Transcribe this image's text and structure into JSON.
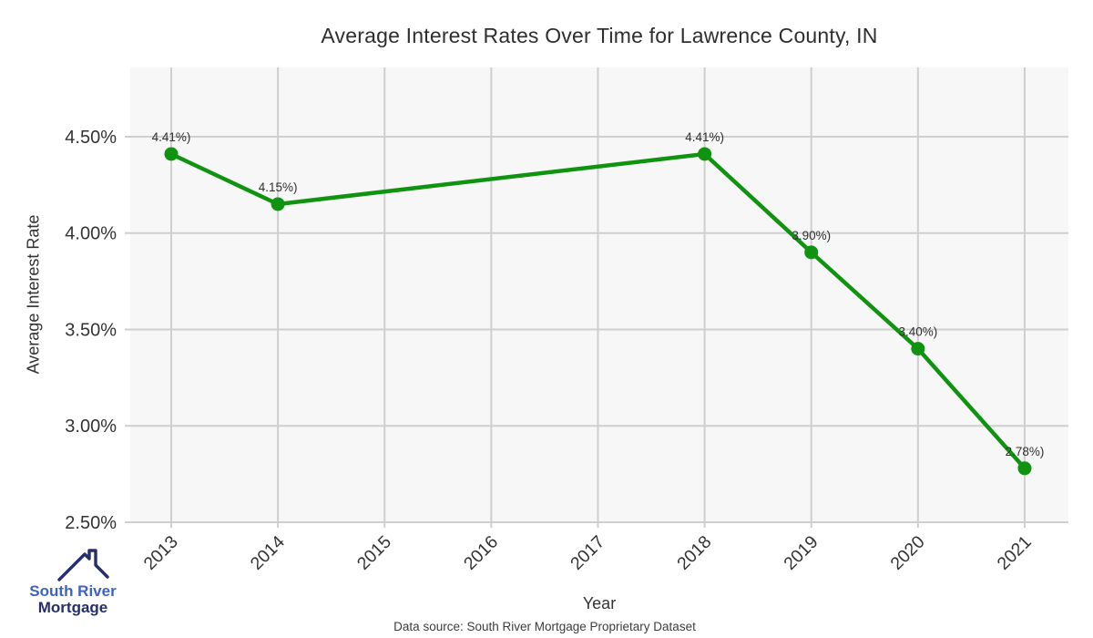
{
  "header": {
    "title": "Average Interest Rates Over Time for Lawrence County, IN"
  },
  "footer": {
    "source": "Data source: South River Mortgage Proprietary Dataset"
  },
  "logo": {
    "icon": "house-roof-icon",
    "name_line1": "South River",
    "name_line2": "Mortgage"
  },
  "colors": {
    "line": "#109310",
    "marker": "#109310",
    "grid": "#cfcfcf",
    "plot_bg": "#f7f7f7",
    "tick_text": "#333333",
    "label_text": "#2f2f2f",
    "logo_blue": "#3e62c4",
    "logo_navy": "#272e6d"
  },
  "chart_data": {
    "type": "line",
    "title": "Average Interest Rates Over Time for Lawrence County, IN",
    "xlabel": "Year",
    "ylabel": "Average Interest Rate",
    "x": [
      2013,
      2014,
      2018,
      2019,
      2020,
      2021
    ],
    "y": [
      4.41,
      4.15,
      4.41,
      3.9,
      3.4,
      2.78
    ],
    "point_labels": [
      "4.41%)",
      "4.15%)",
      "4.41%)",
      "3.90%)",
      "3.40%)",
      "2.78%)"
    ],
    "x_ticks": [
      2013,
      2014,
      2015,
      2016,
      2017,
      2018,
      2019,
      2020,
      2021
    ],
    "x_tick_labels": [
      "2013",
      "2014",
      "2015",
      "2016",
      "2017",
      "2018",
      "2019",
      "2020",
      "2021"
    ],
    "y_ticks": [
      2.5,
      3.0,
      3.5,
      4.0,
      4.5
    ],
    "y_tick_labels": [
      "2.50%",
      "3.00%",
      "3.50%",
      "4.00%",
      "4.50%"
    ],
    "xlim": [
      2012.616,
      2021.41
    ],
    "ylim": [
      2.5,
      4.859
    ],
    "grid": true,
    "legend": false
  }
}
